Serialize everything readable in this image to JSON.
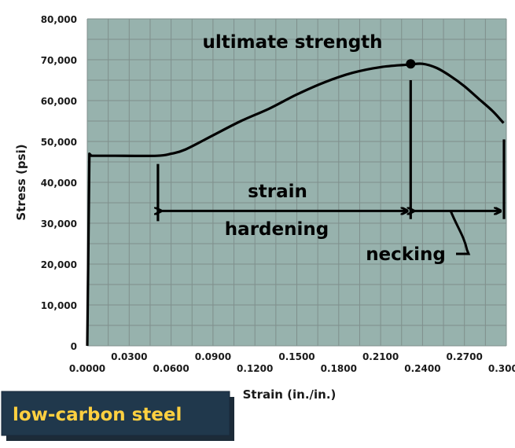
{
  "badge": {
    "label": "low-carbon steel"
  },
  "chart_data": {
    "type": "line",
    "title": "",
    "xlabel": "Strain (in./in.)",
    "ylabel": "Stress (psi)",
    "xlim": [
      0,
      0.3
    ],
    "ylim": [
      0,
      80000
    ],
    "grid": true,
    "x_ticks_bottom": [
      "0.0000",
      "0.0600",
      "0.1200",
      "0.1800",
      "0.2400",
      "0.3000"
    ],
    "x_ticks_top": [
      "0.0300",
      "0.0900",
      "0.1500",
      "0.2100",
      "0.2700"
    ],
    "y_ticks": [
      "0",
      "10,000",
      "20,000",
      "30,000",
      "40,000",
      "50,000",
      "60,000",
      "70,000",
      "80,000"
    ],
    "series": [
      {
        "x": [
          0.0,
          0.0015,
          0.003,
          0.005,
          0.02,
          0.05,
          0.06,
          0.07,
          0.09,
          0.11,
          0.13,
          0.15,
          0.17,
          0.19,
          0.21,
          0.23,
          0.24,
          0.25,
          0.26,
          0.27,
          0.28,
          0.29,
          0.298
        ],
        "y": [
          0,
          47000,
          46500,
          46500,
          46500,
          46500,
          47000,
          48000,
          51500,
          55000,
          58000,
          61500,
          64500,
          66800,
          68200,
          68800,
          69000,
          68000,
          66000,
          63500,
          60500,
          57500,
          54500
        ]
      }
    ],
    "annotations": {
      "ultimate": {
        "label": "ultimate strength",
        "x": 0.2315,
        "y": 69000
      },
      "strain_hardening": {
        "label_top": "strain",
        "label_bottom": "hardening",
        "x_start": 0.0506,
        "x_end": 0.2315,
        "y": 33000
      },
      "necking": {
        "label": "necking",
        "x_start": 0.2315,
        "x_end": 0.3,
        "y": 33000
      }
    }
  }
}
